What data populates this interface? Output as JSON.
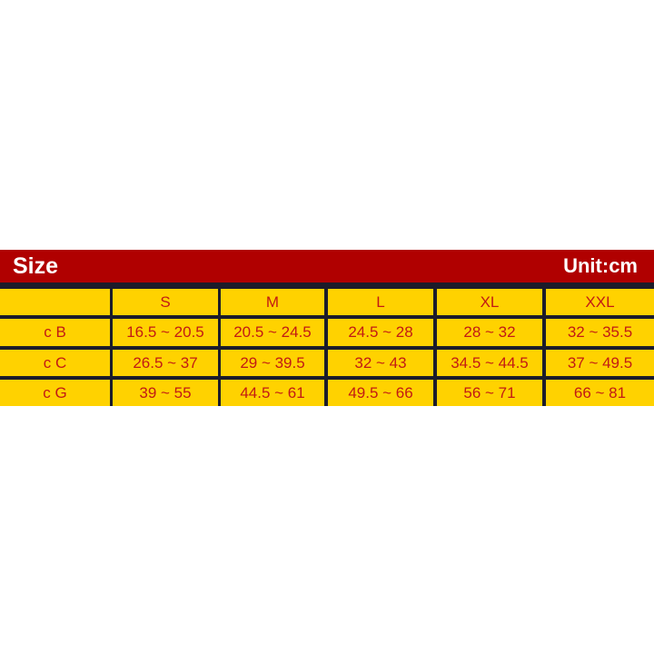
{
  "title": "Size",
  "unit": "Unit:cm",
  "colors": {
    "banner": "#b00000",
    "cell": "#ffd200",
    "text": "#c21a14",
    "border": "#1c1c2a"
  },
  "table": {
    "headers": [
      "",
      "S",
      "M",
      "L",
      "XL",
      "XXL"
    ],
    "rows": [
      [
        "c B",
        "16.5 ~ 20.5",
        "20.5 ~ 24.5",
        "24.5 ~ 28",
        "28 ~ 32",
        "32 ~ 35.5"
      ],
      [
        "c C",
        "26.5 ~ 37",
        "29 ~ 39.5",
        "32 ~ 43",
        "34.5 ~ 44.5",
        "37 ~ 49.5"
      ],
      [
        "c G",
        "39 ~ 55",
        "44.5 ~ 61",
        "49.5 ~ 66",
        "56 ~ 71",
        "66 ~ 81"
      ]
    ]
  }
}
